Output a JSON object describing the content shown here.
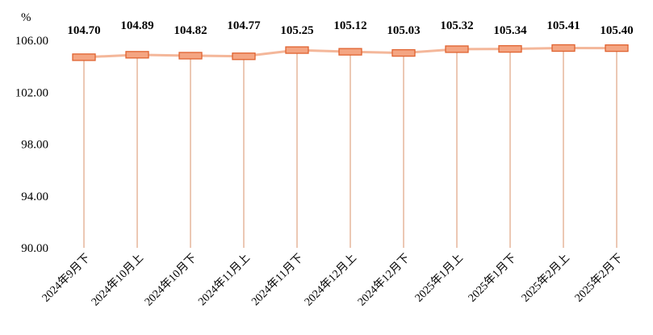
{
  "chart_data": {
    "type": "line",
    "unit_label": "%",
    "categories": [
      "2024年9月下",
      "2024年10月上",
      "2024年10月下",
      "2024年11月上",
      "2024年11月下",
      "2024年12月上",
      "2024年12月下",
      "2025年1月上",
      "2025年1月下",
      "2025年2月上",
      "2025年2月下"
    ],
    "values": [
      104.7,
      104.89,
      104.82,
      104.77,
      105.25,
      105.12,
      105.03,
      105.32,
      105.34,
      105.41,
      105.4
    ],
    "data_labels": [
      "104.70",
      "104.89",
      "104.82",
      "104.77",
      "105.25",
      "105.12",
      "105.03",
      "105.32",
      "105.34",
      "105.41",
      "105.40"
    ],
    "yticks": [
      "90.00",
      "94.00",
      "98.00",
      "102.00",
      "106.00"
    ],
    "ylim": [
      90,
      106
    ],
    "grid": false,
    "colors": {
      "line": "#f4b79a",
      "marker_fill": "#f4a582",
      "marker_stroke": "#e0622f",
      "drop_line": "#d9906a"
    }
  }
}
